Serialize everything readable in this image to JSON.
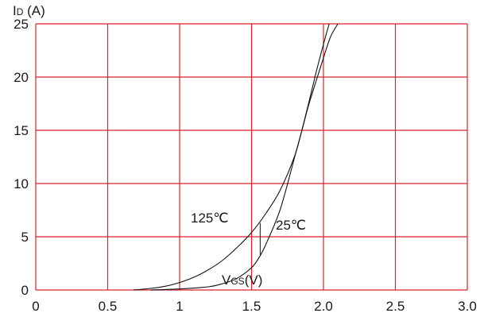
{
  "chart_data": {
    "type": "line",
    "ylabel": "ID (A)",
    "ylabel_main": "I",
    "ylabel_sub": "D",
    "ylabel_rest": " (A)",
    "xlabel": "VGS(V)",
    "xlabel_main": "V",
    "xlabel_sub": "GS",
    "xlabel_rest": "(V)",
    "xlim": [
      0,
      3.0
    ],
    "ylim": [
      0,
      25
    ],
    "x_ticks": [
      "0",
      "0.5",
      "1",
      "1.5",
      "2.0",
      "2.5",
      "3.0"
    ],
    "x_tick_values": [
      0,
      0.5,
      1,
      1.5,
      2.0,
      2.5,
      3.0
    ],
    "y_ticks": [
      "0",
      "5",
      "10",
      "15",
      "20",
      "25"
    ],
    "y_tick_values": [
      0,
      5,
      10,
      15,
      20,
      25
    ],
    "grid": true,
    "grid_color": "#d9232d",
    "line_color": "#111111",
    "series": [
      {
        "name": "125℃",
        "points": [
          [
            0.68,
            0
          ],
          [
            0.8,
            0.15
          ],
          [
            0.9,
            0.35
          ],
          [
            1.0,
            0.7
          ],
          [
            1.1,
            1.2
          ],
          [
            1.2,
            1.9
          ],
          [
            1.3,
            2.8
          ],
          [
            1.4,
            4.0
          ],
          [
            1.5,
            5.4
          ],
          [
            1.6,
            7.2
          ],
          [
            1.7,
            9.4
          ],
          [
            1.8,
            12.6
          ],
          [
            1.85,
            15.0
          ],
          [
            1.9,
            17.5
          ],
          [
            2.0,
            21.8
          ],
          [
            2.05,
            23.8
          ],
          [
            2.1,
            25.0
          ]
        ]
      },
      {
        "name": "25℃",
        "points": [
          [
            0.8,
            0
          ],
          [
            1.0,
            0.1
          ],
          [
            1.2,
            0.3
          ],
          [
            1.3,
            0.6
          ],
          [
            1.4,
            1.1
          ],
          [
            1.5,
            2.1
          ],
          [
            1.55,
            3.0
          ],
          [
            1.6,
            4.3
          ],
          [
            1.7,
            7.6
          ],
          [
            1.8,
            12.5
          ],
          [
            1.85,
            15.0
          ],
          [
            1.9,
            17.7
          ],
          [
            1.95,
            20.5
          ],
          [
            2.0,
            23.1
          ],
          [
            2.04,
            25.0
          ]
        ]
      }
    ]
  }
}
